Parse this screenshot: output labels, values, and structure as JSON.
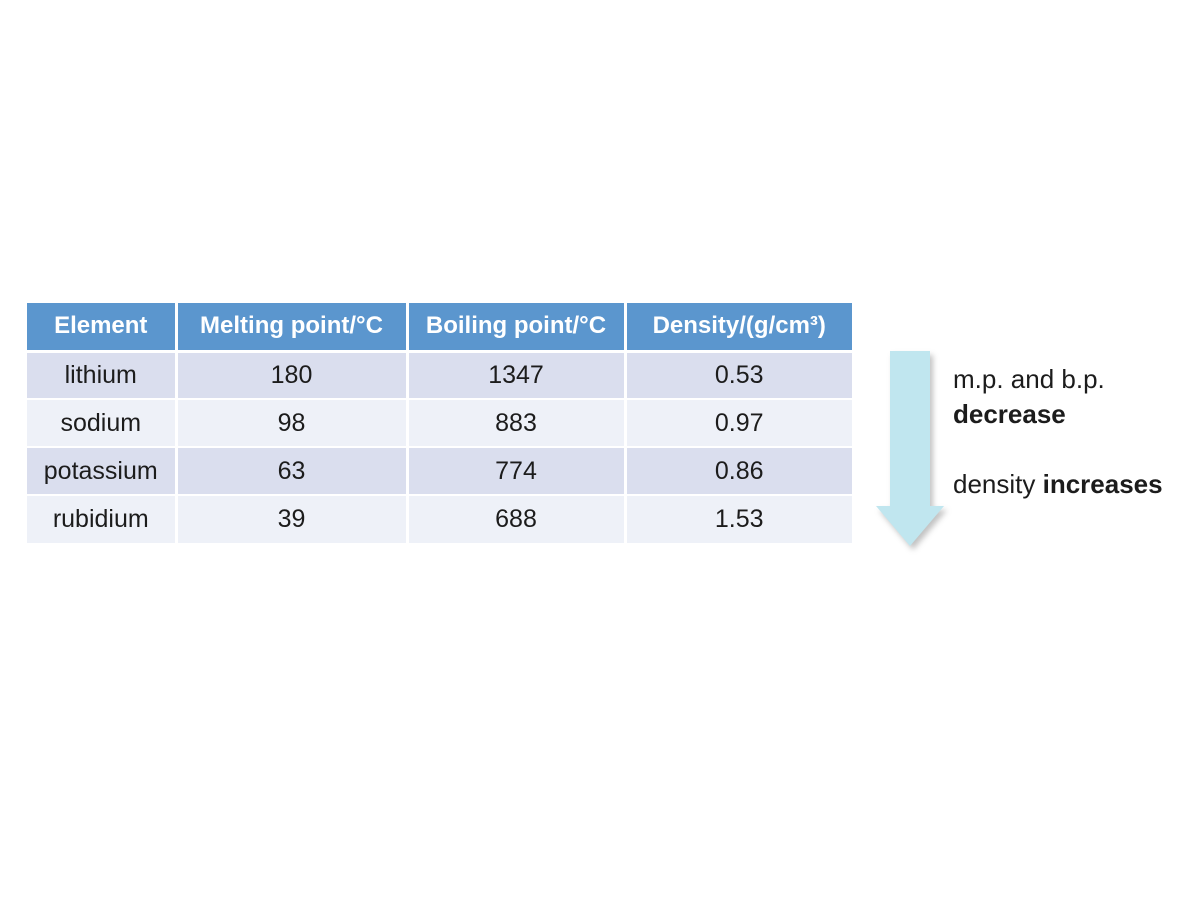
{
  "table": {
    "headers": [
      "Element",
      "Melting point/°C",
      "Boiling point/°C",
      "Density/(g/cm³)"
    ],
    "rows": [
      [
        "lithium",
        "180",
        "1347",
        "0.53"
      ],
      [
        "sodium",
        "98",
        "883",
        "0.97"
      ],
      [
        "potassium",
        "63",
        "774",
        "0.86"
      ],
      [
        "rubidium",
        "39",
        "688",
        "1.53"
      ]
    ]
  },
  "annotation": {
    "line1": "m.p. and b.p.",
    "line2_bold": "decrease",
    "line3_prefix": "density ",
    "line3_bold": "increases"
  },
  "icons": {
    "trend_arrow": "down-arrow"
  },
  "colors": {
    "header_bg": "#5b96ce",
    "header_text": "#ffffff",
    "row_band_dark": "#dadeee",
    "row_band_light": "#eef1f8",
    "arrow_fill": "#c0e6ef",
    "body_text": "#1c1c1c"
  },
  "chart_data": {
    "type": "table",
    "title": "",
    "columns": [
      "Element",
      "Melting point/°C",
      "Boiling point/°C",
      "Density/(g/cm³)"
    ],
    "rows": [
      {
        "element": "lithium",
        "melting_point_c": 180,
        "boiling_point_c": 1347,
        "density_g_cm3": 0.53
      },
      {
        "element": "sodium",
        "melting_point_c": 98,
        "boiling_point_c": 883,
        "density_g_cm3": 0.97
      },
      {
        "element": "potassium",
        "melting_point_c": 63,
        "boiling_point_c": 774,
        "density_g_cm3": 0.86
      },
      {
        "element": "rubidium",
        "melting_point_c": 39,
        "boiling_point_c": 688,
        "density_g_cm3": 1.53
      }
    ],
    "annotations": [
      "m.p. and b.p. decrease",
      "density increases"
    ],
    "layout_hints": {
      "banded_rows": true,
      "header_style": "blue-bold-white",
      "trend_arrow": "downward at right"
    }
  }
}
